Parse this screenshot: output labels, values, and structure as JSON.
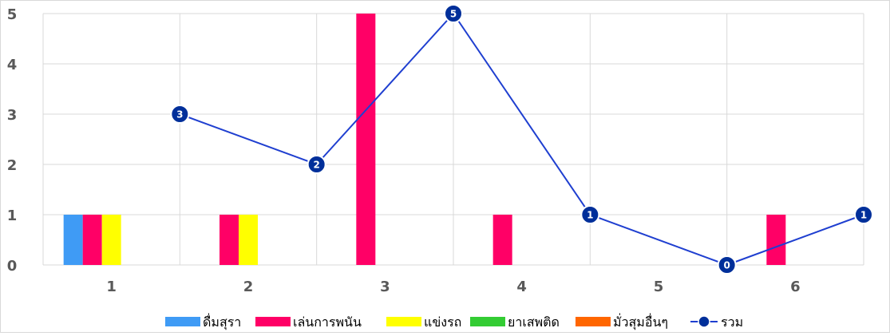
{
  "chart_data": {
    "type": "bar",
    "categories": [
      "1",
      "2",
      "3",
      "4",
      "5",
      "6"
    ],
    "series": [
      {
        "name": "ดื่มสุรา",
        "kind": "bar",
        "color": "#3f9bf5",
        "values": [
          1,
          0,
          0,
          0,
          0,
          0
        ]
      },
      {
        "name": "เล่นการพนัน",
        "kind": "bar",
        "color": "#ff0066",
        "values": [
          1,
          1,
          5,
          1,
          0,
          1
        ]
      },
      {
        "name": "แข่งรถ",
        "kind": "bar",
        "color": "#ffff00",
        "values": [
          1,
          1,
          0,
          0,
          0,
          0
        ]
      },
      {
        "name": "ยาเสพติด",
        "kind": "bar",
        "color": "#33cc33",
        "values": [
          0,
          0,
          0,
          0,
          0,
          0
        ]
      },
      {
        "name": "มั่วสุมอื่นๆ",
        "kind": "bar",
        "color": "#ff6600",
        "values": [
          0,
          0,
          0,
          0,
          0,
          0
        ]
      },
      {
        "name": "รวม",
        "kind": "line",
        "color": "#1f3fd0",
        "marker_color": "#002f9a",
        "values": [
          3,
          2,
          5,
          1,
          0,
          1
        ]
      }
    ],
    "y_ticks": [
      "0",
      "1",
      "2",
      "3",
      "4",
      "5"
    ],
    "ylim": [
      0,
      5
    ],
    "grid": true,
    "legend_position": "bottom",
    "title": "",
    "xlabel": "",
    "ylabel": ""
  }
}
